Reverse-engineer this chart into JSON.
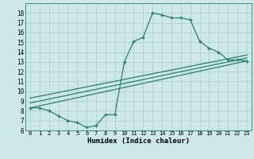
{
  "xlabel": "Humidex (Indice chaleur)",
  "background_color": "#cde8e8",
  "grid_color": "#b0d0d0",
  "line_color": "#2e7d6e",
  "xlim": [
    -0.5,
    23.5
  ],
  "ylim": [
    6,
    19
  ],
  "xticks": [
    0,
    1,
    2,
    3,
    4,
    5,
    6,
    7,
    8,
    9,
    10,
    11,
    12,
    13,
    14,
    15,
    16,
    17,
    18,
    19,
    20,
    21,
    22,
    23
  ],
  "yticks": [
    6,
    7,
    8,
    9,
    10,
    11,
    12,
    13,
    14,
    15,
    16,
    17,
    18
  ],
  "line1_x": [
    0,
    1,
    2,
    3,
    4,
    5,
    6,
    7,
    8,
    9,
    10,
    11,
    12,
    13,
    14,
    15,
    16,
    17,
    18,
    19,
    20,
    21,
    22,
    23
  ],
  "line1_y": [
    8.3,
    8.3,
    8.0,
    7.5,
    7.0,
    6.8,
    6.3,
    6.5,
    7.6,
    7.6,
    13.0,
    15.1,
    15.5,
    18.0,
    17.8,
    17.5,
    17.5,
    17.3,
    15.1,
    14.4,
    14.0,
    13.2,
    13.2,
    13.1
  ],
  "line2_x": [
    0,
    23
  ],
  "line2_y": [
    8.3,
    13.1
  ],
  "line3_x": [
    0,
    23
  ],
  "line3_y": [
    8.8,
    13.4
  ],
  "line4_x": [
    0,
    23
  ],
  "line4_y": [
    9.3,
    13.7
  ]
}
